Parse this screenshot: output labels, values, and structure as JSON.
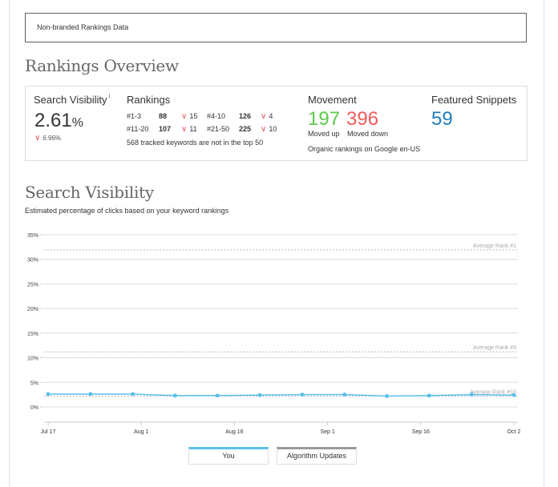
{
  "filter": {
    "label": "Non-branded Rankings Data"
  },
  "overview": {
    "title": "Rankings Overview",
    "search_visibility": {
      "label": "Search Visibility",
      "info": "i",
      "value": "2.61",
      "unit": "%",
      "delta": "6.96%"
    },
    "rankings": {
      "label": "Rankings",
      "rows": [
        [
          {
            "range": "#1-3",
            "count": "88",
            "delta": "15"
          },
          {
            "range": "#4-10",
            "count": "126",
            "delta": "4"
          }
        ],
        [
          {
            "range": "#11-20",
            "count": "107",
            "delta": "11"
          },
          {
            "range": "#21-50",
            "count": "225",
            "delta": "10"
          }
        ]
      ],
      "note": "568 tracked keywords are not in the top 50"
    },
    "movement": {
      "label": "Movement",
      "up": "197",
      "down": "396",
      "up_label": "Moved up",
      "down_label": "Moved down",
      "note": "Organic rankings on Google en-US"
    },
    "featured_snippets": {
      "label": "Featured Snippets",
      "value": "59"
    }
  },
  "visibility": {
    "title": "Search Visibility",
    "subtitle": "Estimated percentage of clicks based on your keyword rankings"
  },
  "colors": {
    "series": "#5bc0eb",
    "up": "#5cc94a",
    "down": "#ee5a5a",
    "snippets": "#1e7fba",
    "algo": "#999999"
  },
  "chart_data": {
    "type": "line",
    "title": "Search Visibility",
    "xlabel": "",
    "ylabel": "",
    "ylim": [
      0,
      35
    ],
    "y_ticks": [
      "0%",
      "5%",
      "10%",
      "15%",
      "20%",
      "25%",
      "30%",
      "35%"
    ],
    "y_tick_values": [
      0,
      5,
      10,
      15,
      20,
      25,
      30,
      35
    ],
    "x_tick_labels": [
      "Jul 17",
      "Aug 1",
      "Aug 16",
      "Sep 1",
      "Sep 16",
      "Oct 2"
    ],
    "x_tick_index": [
      0,
      2.2,
      4.4,
      6.6,
      8.8,
      11
    ],
    "series": [
      {
        "name": "You",
        "values": [
          2.6,
          2.6,
          2.6,
          2.3,
          2.3,
          2.4,
          2.5,
          2.5,
          2.2,
          2.3,
          2.5,
          2.4
        ]
      }
    ],
    "reference_lines": [
      {
        "label": "Average Rank #1",
        "value": 31.9
      },
      {
        "label": "Average Rank #3",
        "value": 11.2
      },
      {
        "label": "Average Rank #10",
        "value": 2.2
      }
    ],
    "grid": true,
    "legend": [
      {
        "label": "You"
      },
      {
        "label": "Algorithm Updates"
      }
    ],
    "legend_position": "bottom-center"
  }
}
